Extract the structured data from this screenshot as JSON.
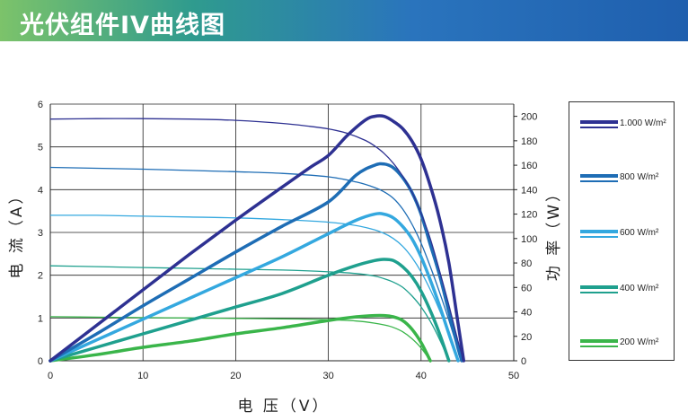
{
  "banner": {
    "title": "光伏组件IV曲线图"
  },
  "legend": [
    {
      "label": "1.000 W/m²",
      "color": "#2e3192"
    },
    {
      "label": "800 W/m²",
      "color": "#1e6db5"
    },
    {
      "label": "600 W/m²",
      "color": "#34a8df"
    },
    {
      "label": "400 W/m²",
      "color": "#1fa08e"
    },
    {
      "label": "200 W/m²",
      "color": "#3ab54a"
    }
  ],
  "chart_data": {
    "type": "line",
    "xlabel": "电 压（V）",
    "ylabel_left": "电 流（A）",
    "ylabel_right": "功 率（W）",
    "xlim": [
      0,
      50
    ],
    "ylim_left": [
      0,
      6
    ],
    "ylim_right": [
      0,
      210
    ],
    "xticks": [
      0,
      10,
      20,
      30,
      40,
      50
    ],
    "yticks_left": [
      0,
      1,
      2,
      3,
      4,
      5,
      6
    ],
    "yticks_right": [
      0,
      20,
      40,
      60,
      80,
      100,
      120,
      140,
      160,
      180,
      200
    ],
    "grid": true,
    "legend_position": "right",
    "series": [
      {
        "name": "1.000 W/m²",
        "color": "#2e3192",
        "current": {
          "x": [
            0,
            5,
            10,
            15,
            20,
            25,
            28,
            30,
            32,
            34,
            35,
            36,
            37,
            38,
            39,
            40,
            41,
            42,
            43,
            44,
            44.6
          ],
          "y": [
            5.65,
            5.66,
            5.66,
            5.65,
            5.62,
            5.55,
            5.48,
            5.42,
            5.32,
            5.15,
            5.02,
            4.85,
            4.62,
            4.32,
            3.95,
            3.45,
            2.85,
            2.1,
            1.3,
            0.45,
            0
          ]
        },
        "power": {
          "x": [
            0,
            5,
            10,
            15,
            20,
            25,
            28,
            30,
            32,
            34,
            35,
            36,
            37,
            38,
            39,
            40,
            41,
            42,
            43,
            44,
            44.6
          ],
          "y": [
            0,
            29,
            58,
            87,
            115,
            142,
            158,
            168,
            184,
            197,
            200,
            200,
            196,
            190,
            180,
            165,
            143,
            116,
            80,
            30,
            0
          ]
        }
      },
      {
        "name": "800 W/m²",
        "color": "#1e6db5",
        "current": {
          "x": [
            0,
            5,
            10,
            15,
            20,
            25,
            30,
            33,
            35,
            36,
            37,
            38,
            39,
            40,
            41,
            42,
            43,
            44,
            44.4
          ],
          "y": [
            4.52,
            4.5,
            4.48,
            4.45,
            4.42,
            4.38,
            4.3,
            4.18,
            4.05,
            3.95,
            3.8,
            3.55,
            3.2,
            2.75,
            2.2,
            1.6,
            0.95,
            0.25,
            0
          ]
        },
        "power": {
          "x": [
            0,
            5,
            10,
            15,
            20,
            25,
            30,
            33,
            35,
            36,
            37,
            38,
            39,
            40,
            41,
            42,
            43,
            44,
            44.4
          ],
          "y": [
            0,
            22,
            45,
            67,
            89,
            110,
            130,
            152,
            160,
            161,
            158,
            150,
            138,
            120,
            95,
            70,
            40,
            10,
            0
          ]
        }
      },
      {
        "name": "600 W/m²",
        "color": "#34a8df",
        "current": {
          "x": [
            0,
            5,
            10,
            15,
            20,
            25,
            30,
            33,
            35,
            36,
            37,
            38,
            39,
            40,
            41,
            42,
            43,
            44
          ],
          "y": [
            3.4,
            3.4,
            3.38,
            3.36,
            3.34,
            3.3,
            3.24,
            3.16,
            3.06,
            2.98,
            2.86,
            2.68,
            2.42,
            2.08,
            1.66,
            1.18,
            0.62,
            0
          ]
        },
        "power": {
          "x": [
            0,
            5,
            10,
            15,
            20,
            25,
            30,
            33,
            35,
            36,
            37,
            38,
            39,
            40,
            41,
            42,
            43,
            44
          ],
          "y": [
            0,
            17,
            34,
            51,
            68,
            85,
            104,
            115,
            120,
            120,
            117,
            110,
            100,
            85,
            66,
            45,
            22,
            0
          ]
        }
      },
      {
        "name": "400 W/m²",
        "color": "#1fa08e",
        "current": {
          "x": [
            0,
            5,
            10,
            15,
            20,
            25,
            30,
            33,
            35,
            36,
            37,
            38,
            39,
            40,
            41,
            42,
            43
          ],
          "y": [
            2.22,
            2.2,
            2.18,
            2.16,
            2.14,
            2.12,
            2.08,
            2.04,
            1.98,
            1.92,
            1.84,
            1.72,
            1.52,
            1.26,
            0.92,
            0.5,
            0
          ]
        },
        "power": {
          "x": [
            0,
            5,
            10,
            15,
            20,
            25,
            30,
            33,
            35,
            36,
            37,
            38,
            39,
            40,
            41,
            42,
            43
          ],
          "y": [
            0,
            11,
            22,
            33,
            44,
            55,
            70,
            78,
            82,
            83,
            82,
            77,
            69,
            57,
            41,
            22,
            0
          ]
        }
      },
      {
        "name": "200 W/m²",
        "color": "#3ab54a",
        "current": {
          "x": [
            0,
            5,
            10,
            15,
            20,
            25,
            30,
            33,
            35,
            36,
            37,
            38,
            39,
            40,
            41
          ],
          "y": [
            1.03,
            1.02,
            1.01,
            1.0,
            0.99,
            0.98,
            0.96,
            0.93,
            0.88,
            0.84,
            0.78,
            0.68,
            0.52,
            0.3,
            0
          ]
        },
        "power": {
          "x": [
            0,
            5,
            10,
            15,
            20,
            25,
            30,
            33,
            35,
            36,
            37,
            38,
            39,
            40,
            41
          ],
          "y": [
            0,
            5,
            11,
            16,
            22,
            27,
            33,
            36,
            37,
            37,
            36,
            33,
            26,
            15,
            0
          ]
        }
      }
    ]
  }
}
